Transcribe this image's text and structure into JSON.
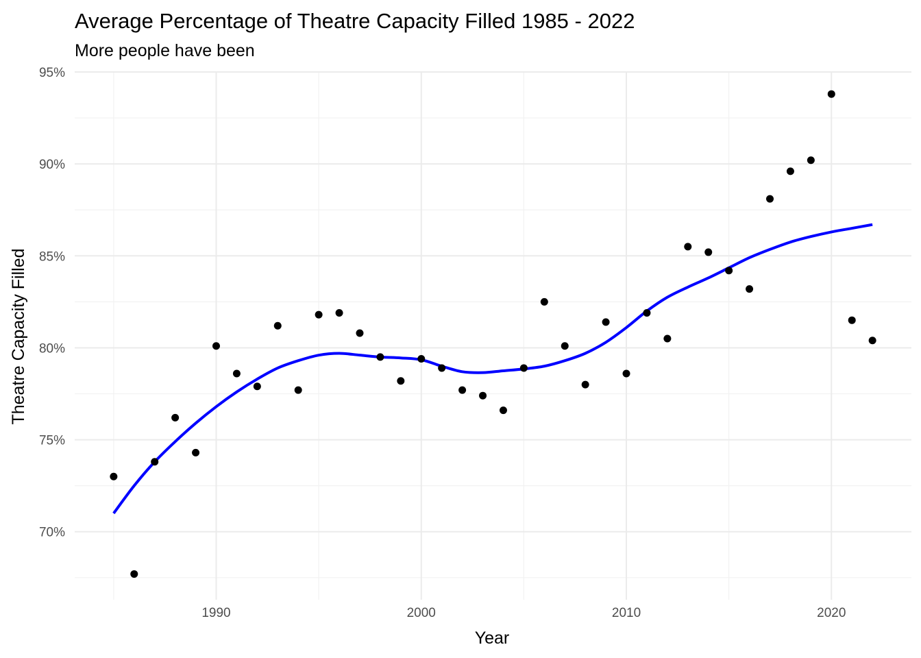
{
  "chart_data": {
    "type": "scatter",
    "title": "Average Percentage of Theatre Capacity Filled 1985 - 2022",
    "subtitle": "More people have been",
    "xlabel": "Year",
    "ylabel": "Theatre Capacity Filled",
    "xlim": [
      1983.1,
      2023.9
    ],
    "ylim": [
      66.3,
      95.0
    ],
    "x_ticks": [
      1990,
      2000,
      2010,
      2020
    ],
    "x_minor_ticks": [
      1985,
      1995,
      2005,
      2015
    ],
    "y_ticks": [
      70,
      75,
      80,
      85,
      90,
      95
    ],
    "y_tick_labels": [
      "70%",
      "75%",
      "80%",
      "85%",
      "90%",
      "95%"
    ],
    "y_minor_ticks": [
      67.5,
      72.5,
      77.5,
      82.5,
      87.5,
      92.5
    ],
    "point_color": "#000000",
    "smooth_color": "#0000ff",
    "points": [
      {
        "year": 1985,
        "value": 73.0
      },
      {
        "year": 1986,
        "value": 67.7
      },
      {
        "year": 1987,
        "value": 73.8
      },
      {
        "year": 1988,
        "value": 76.2
      },
      {
        "year": 1989,
        "value": 74.3
      },
      {
        "year": 1990,
        "value": 80.1
      },
      {
        "year": 1991,
        "value": 78.6
      },
      {
        "year": 1992,
        "value": 77.9
      },
      {
        "year": 1993,
        "value": 81.2
      },
      {
        "year": 1994,
        "value": 77.7
      },
      {
        "year": 1995,
        "value": 81.8
      },
      {
        "year": 1996,
        "value": 81.9
      },
      {
        "year": 1997,
        "value": 80.8
      },
      {
        "year": 1998,
        "value": 79.5
      },
      {
        "year": 1999,
        "value": 78.2
      },
      {
        "year": 2000,
        "value": 79.4
      },
      {
        "year": 2001,
        "value": 78.9
      },
      {
        "year": 2002,
        "value": 77.7
      },
      {
        "year": 2003,
        "value": 77.4
      },
      {
        "year": 2004,
        "value": 76.6
      },
      {
        "year": 2005,
        "value": 78.9
      },
      {
        "year": 2006,
        "value": 82.5
      },
      {
        "year": 2007,
        "value": 80.1
      },
      {
        "year": 2008,
        "value": 78.0
      },
      {
        "year": 2009,
        "value": 81.4
      },
      {
        "year": 2010,
        "value": 78.6
      },
      {
        "year": 2011,
        "value": 81.9
      },
      {
        "year": 2012,
        "value": 80.5
      },
      {
        "year": 2013,
        "value": 85.5
      },
      {
        "year": 2014,
        "value": 85.2
      },
      {
        "year": 2015,
        "value": 84.2
      },
      {
        "year": 2016,
        "value": 83.2
      },
      {
        "year": 2017,
        "value": 88.1
      },
      {
        "year": 2018,
        "value": 89.6
      },
      {
        "year": 2019,
        "value": 90.2
      },
      {
        "year": 2020,
        "value": 93.8
      },
      {
        "year": 2021,
        "value": 81.5
      },
      {
        "year": 2022,
        "value": 80.4
      }
    ],
    "smooth_line": [
      {
        "year": 1985,
        "value": 71.0
      },
      {
        "year": 1986,
        "value": 72.5
      },
      {
        "year": 1987,
        "value": 73.8
      },
      {
        "year": 1988,
        "value": 74.9
      },
      {
        "year": 1989,
        "value": 75.9
      },
      {
        "year": 1990,
        "value": 76.8
      },
      {
        "year": 1991,
        "value": 77.6
      },
      {
        "year": 1992,
        "value": 78.3
      },
      {
        "year": 1993,
        "value": 78.9
      },
      {
        "year": 1994,
        "value": 79.3
      },
      {
        "year": 1995,
        "value": 79.6
      },
      {
        "year": 1996,
        "value": 79.7
      },
      {
        "year": 1997,
        "value": 79.6
      },
      {
        "year": 1998,
        "value": 79.5
      },
      {
        "year": 1999,
        "value": 79.45
      },
      {
        "year": 2000,
        "value": 79.35
      },
      {
        "year": 2001,
        "value": 79.0
      },
      {
        "year": 2002,
        "value": 78.7
      },
      {
        "year": 2003,
        "value": 78.65
      },
      {
        "year": 2004,
        "value": 78.75
      },
      {
        "year": 2005,
        "value": 78.85
      },
      {
        "year": 2006,
        "value": 79.0
      },
      {
        "year": 2007,
        "value": 79.3
      },
      {
        "year": 2008,
        "value": 79.7
      },
      {
        "year": 2009,
        "value": 80.3
      },
      {
        "year": 2010,
        "value": 81.1
      },
      {
        "year": 2011,
        "value": 82.0
      },
      {
        "year": 2012,
        "value": 82.75
      },
      {
        "year": 2013,
        "value": 83.3
      },
      {
        "year": 2014,
        "value": 83.8
      },
      {
        "year": 2015,
        "value": 84.35
      },
      {
        "year": 2016,
        "value": 84.9
      },
      {
        "year": 2017,
        "value": 85.35
      },
      {
        "year": 2018,
        "value": 85.75
      },
      {
        "year": 2019,
        "value": 86.05
      },
      {
        "year": 2020,
        "value": 86.3
      },
      {
        "year": 2021,
        "value": 86.5
      },
      {
        "year": 2022,
        "value": 86.7
      }
    ]
  }
}
